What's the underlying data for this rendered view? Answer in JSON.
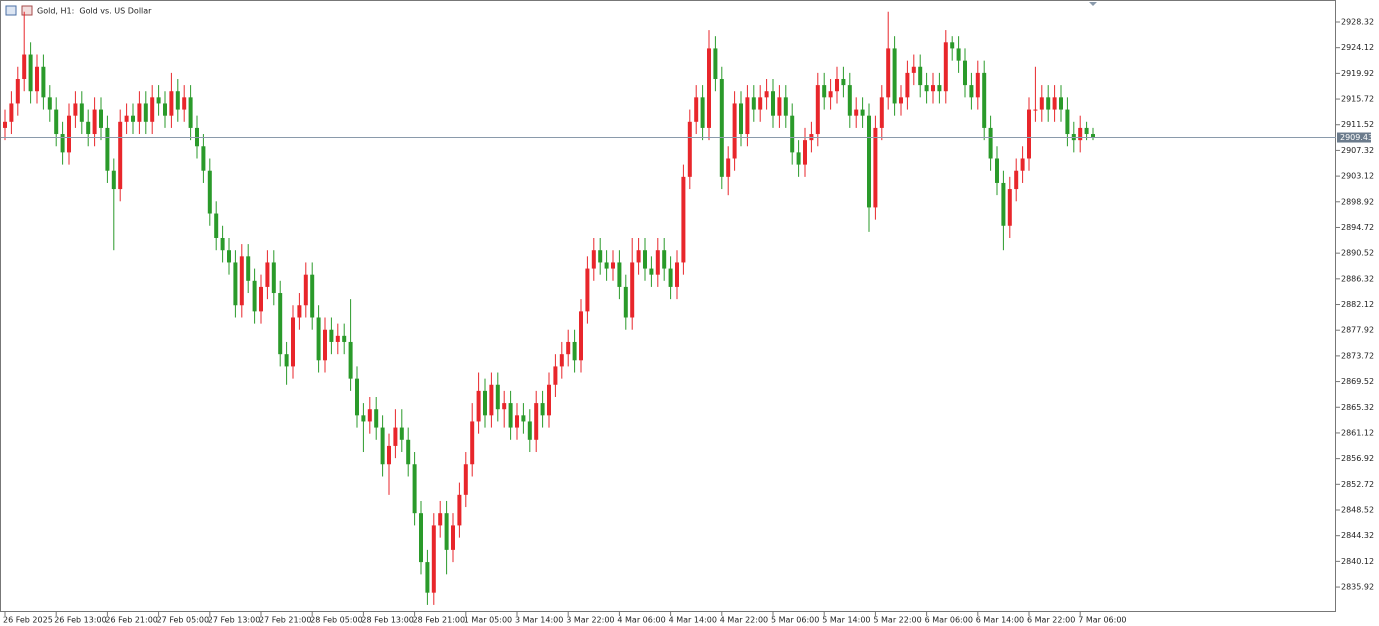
{
  "chart_data": {
    "type": "candlestick",
    "title": "Gold, H1:  Gold vs. US Dollar",
    "categories": [
      "26 Feb 2025",
      null,
      null,
      null,
      null,
      null,
      null,
      null,
      "26 Feb 13:00",
      null,
      null,
      null,
      null,
      null,
      null,
      null,
      "26 Feb 21:00",
      null,
      null,
      null,
      null,
      null,
      null,
      null,
      "27 Feb 05:00",
      null,
      null,
      null,
      null,
      null,
      null,
      null,
      "27 Feb 13:00",
      null,
      null,
      null,
      null,
      null,
      null,
      null,
      "27 Feb 21:00",
      null,
      null,
      null,
      null,
      null,
      null,
      null,
      "28 Feb 05:00",
      null,
      null,
      null,
      null,
      null,
      null,
      null,
      "28 Feb 13:00",
      null,
      null,
      null,
      null,
      null,
      null,
      null,
      "28 Feb 21:00",
      null,
      null,
      null,
      null,
      null,
      null,
      null,
      "1 Mar 05:00",
      null,
      null,
      null,
      null,
      null,
      null,
      null,
      "3 Mar 14:00",
      null,
      null,
      null,
      null,
      null,
      null,
      null,
      "3 Mar 22:00",
      null,
      null,
      null,
      null,
      null,
      null,
      null,
      "4 Mar 06:00",
      null,
      null,
      null,
      null,
      null,
      null,
      null,
      "4 Mar 14:00",
      null,
      null,
      null,
      null,
      null,
      null,
      null,
      "4 Mar 22:00",
      null,
      null,
      null,
      null,
      null,
      null,
      null,
      "5 Mar 06:00",
      null,
      null,
      null,
      null,
      null,
      null,
      null,
      "5 Mar 14:00",
      null,
      null,
      null,
      null,
      null,
      null,
      null,
      "5 Mar 22:00",
      null,
      null,
      null,
      null,
      null,
      null,
      null,
      "6 Mar 06:00",
      null,
      null,
      null,
      null,
      null,
      null,
      null,
      "6 Mar 14:00",
      null,
      null,
      null,
      null,
      null,
      null,
      null,
      "6 Mar 22:00",
      null,
      null,
      null,
      null,
      null,
      null,
      null,
      "7 Mar 06:00",
      null,
      null
    ],
    "open": [
      2911,
      2912,
      2915,
      2919,
      2923,
      2917,
      2921,
      2916,
      2914,
      2910,
      2907,
      2913,
      2915,
      2912,
      2910,
      2914,
      2911,
      2904,
      2901,
      2912,
      2913,
      2912,
      2915,
      2912,
      2916,
      2915,
      2913,
      2917,
      2914,
      2916,
      2911,
      2908,
      2904,
      2897,
      2893,
      2891,
      2889,
      2882,
      2890,
      2886,
      2881,
      2885,
      2889,
      2884,
      2874,
      2872,
      2880,
      2882,
      2887,
      2880,
      2873,
      2878,
      2876,
      2877,
      2876,
      2870,
      2864,
      2863,
      2865,
      2862,
      2856,
      2859,
      2862,
      2860,
      2856,
      2848,
      2840,
      2835,
      2846,
      2848,
      2842,
      2846,
      2851,
      2856,
      2863,
      2868,
      2864,
      2869,
      2865,
      2866,
      2862,
      2864,
      2863,
      2860,
      2866,
      2864,
      2869,
      2872,
      2874,
      2876,
      2873,
      2881,
      2888,
      2891,
      2889,
      2888,
      2889,
      2885,
      2880,
      2889,
      2891,
      2888,
      2887,
      2891,
      2888,
      2885,
      2889,
      2903,
      2912,
      2916,
      2911,
      2924,
      2919,
      2903,
      2906,
      2915,
      2910,
      2916,
      2914,
      2916,
      2917,
      2913,
      2916,
      2913,
      2907,
      2905,
      2909,
      2910,
      2918,
      2916,
      2917,
      2919,
      2918,
      2913,
      2914,
      2913,
      2898,
      2911,
      2916,
      2924,
      2915,
      2916,
      2920,
      2921,
      2918,
      2917,
      2918,
      2917,
      2925,
      2924,
      2922,
      2918,
      2916,
      2920,
      2911,
      2906,
      2902,
      2895,
      2901,
      2904,
      2906,
      2914,
      2914,
      2916,
      2914,
      2916,
      2914,
      2910,
      2909,
      2911,
      2910
    ],
    "high": [
      2914,
      2917,
      2921,
      2930,
      2925,
      2923,
      2923,
      2918,
      2916,
      2912,
      2915,
      2917,
      2917,
      2914,
      2916,
      2916,
      2913,
      2906,
      2914,
      2915,
      2915,
      2917,
      2917,
      2918,
      2918,
      2917,
      2920,
      2919,
      2918,
      2918,
      2913,
      2910,
      2906,
      2899,
      2895,
      2893,
      2891,
      2892,
      2892,
      2888,
      2887,
      2891,
      2891,
      2886,
      2876,
      2882,
      2884,
      2889,
      2889,
      2882,
      2880,
      2880,
      2879,
      2879,
      2883,
      2872,
      2866,
      2867,
      2867,
      2864,
      2861,
      2865,
      2865,
      2862,
      2858,
      2850,
      2842,
      2848,
      2850,
      2850,
      2848,
      2853,
      2858,
      2866,
      2871,
      2870,
      2871,
      2871,
      2868,
      2868,
      2866,
      2866,
      2865,
      2868,
      2868,
      2871,
      2874,
      2876,
      2878,
      2878,
      2883,
      2890,
      2893,
      2893,
      2891,
      2891,
      2891,
      2887,
      2893,
      2893,
      2893,
      2890,
      2893,
      2893,
      2890,
      2891,
      2905,
      2914,
      2918,
      2918,
      2927,
      2926,
      2921,
      2908,
      2917,
      2917,
      2918,
      2918,
      2918,
      2919,
      2919,
      2918,
      2918,
      2915,
      2909,
      2911,
      2912,
      2920,
      2920,
      2919,
      2921,
      2921,
      2920,
      2916,
      2916,
      2915,
      2913,
      2918,
      2930,
      2926,
      2918,
      2922,
      2923,
      2923,
      2920,
      2920,
      2920,
      2927,
      2926,
      2926,
      2924,
      2920,
      2922,
      2922,
      2913,
      2908,
      2904,
      2903,
      2906,
      2908,
      2916,
      2921,
      2918,
      2918,
      2918,
      2918,
      2916,
      2912,
      2913,
      2912,
      2911
    ],
    "low": [
      2909,
      2910,
      2913,
      2917,
      2915,
      2915,
      2914,
      2912,
      2908,
      2905,
      2905,
      2911,
      2910,
      2908,
      2908,
      2909,
      2902,
      2891,
      2899,
      2910,
      2910,
      2910,
      2910,
      2910,
      2913,
      2911,
      2911,
      2912,
      2912,
      2909,
      2906,
      2902,
      2895,
      2891,
      2889,
      2887,
      2880,
      2880,
      2884,
      2879,
      2879,
      2883,
      2882,
      2872,
      2869,
      2870,
      2878,
      2880,
      2878,
      2871,
      2871,
      2874,
      2874,
      2874,
      2868,
      2862,
      2858,
      2861,
      2860,
      2854,
      2851,
      2857,
      2858,
      2854,
      2846,
      2838,
      2833,
      2833,
      2844,
      2838,
      2840,
      2844,
      2849,
      2854,
      2861,
      2862,
      2862,
      2863,
      2862,
      2860,
      2860,
      2861,
      2858,
      2858,
      2862,
      2862,
      2867,
      2870,
      2872,
      2871,
      2871,
      2879,
      2886,
      2887,
      2886,
      2886,
      2883,
      2878,
      2878,
      2887,
      2886,
      2885,
      2885,
      2886,
      2883,
      2883,
      2887,
      2901,
      2910,
      2909,
      2909,
      2917,
      2901,
      2900,
      2904,
      2908,
      2908,
      2912,
      2912,
      2914,
      2911,
      2911,
      2911,
      2905,
      2903,
      2903,
      2907,
      2908,
      2914,
      2914,
      2915,
      2916,
      2911,
      2911,
      2911,
      2894,
      2896,
      2909,
      2914,
      2913,
      2913,
      2914,
      2918,
      2916,
      2915,
      2915,
      2915,
      2915,
      2922,
      2920,
      2916,
      2914,
      2914,
      2909,
      2904,
      2900,
      2891,
      2893,
      2899,
      2902,
      2904,
      2912,
      2912,
      2912,
      2912,
      2912,
      2908,
      2907,
      2907,
      2909,
      2909
    ],
    "close": [
      2912,
      2915,
      2919,
      2923,
      2917,
      2921,
      2916,
      2914,
      2910,
      2907,
      2913,
      2915,
      2912,
      2910,
      2914,
      2911,
      2904,
      2901,
      2912,
      2913,
      2912,
      2915,
      2912,
      2916,
      2915,
      2913,
      2917,
      2914,
      2916,
      2911,
      2908,
      2904,
      2897,
      2893,
      2891,
      2889,
      2882,
      2890,
      2886,
      2881,
      2885,
      2889,
      2884,
      2874,
      2872,
      2880,
      2882,
      2887,
      2880,
      2873,
      2878,
      2876,
      2877,
      2876,
      2870,
      2864,
      2863,
      2865,
      2862,
      2856,
      2859,
      2862,
      2860,
      2856,
      2848,
      2840,
      2835,
      2846,
      2848,
      2842,
      2846,
      2851,
      2856,
      2863,
      2868,
      2864,
      2869,
      2865,
      2866,
      2862,
      2864,
      2863,
      2860,
      2866,
      2864,
      2869,
      2872,
      2874,
      2876,
      2873,
      2881,
      2888,
      2891,
      2889,
      2888,
      2889,
      2885,
      2880,
      2889,
      2891,
      2888,
      2887,
      2891,
      2888,
      2885,
      2889,
      2903,
      2912,
      2916,
      2911,
      2924,
      2919,
      2903,
      2906,
      2915,
      2910,
      2916,
      2914,
      2916,
      2917,
      2913,
      2916,
      2913,
      2907,
      2905,
      2909,
      2910,
      2918,
      2916,
      2917,
      2919,
      2918,
      2913,
      2914,
      2913,
      2898,
      2911,
      2916,
      2924,
      2915,
      2916,
      2920,
      2921,
      2918,
      2917,
      2918,
      2917,
      2925,
      2924,
      2922,
      2918,
      2916,
      2920,
      2911,
      2906,
      2902,
      2895,
      2901,
      2904,
      2906,
      2914,
      2914,
      2916,
      2914,
      2916,
      2914,
      2910,
      2909,
      2911,
      2910,
      2909.5
    ],
    "up_color": "#e8262b",
    "down_color": "#2a9a2a",
    "ylim": [
      2831.84,
      2931.59
    ],
    "yticks": [
      2928.32,
      2924.12,
      2919.92,
      2915.72,
      2911.52,
      2907.32,
      2903.12,
      2898.92,
      2894.72,
      2890.52,
      2886.32,
      2882.12,
      2877.92,
      2873.72,
      2869.52,
      2865.32,
      2861.12,
      2856.92,
      2852.72,
      2848.52,
      2844.32,
      2840.12,
      2835.92
    ],
    "last_price": 2909.43,
    "last_price_color": "#8a9aab"
  }
}
